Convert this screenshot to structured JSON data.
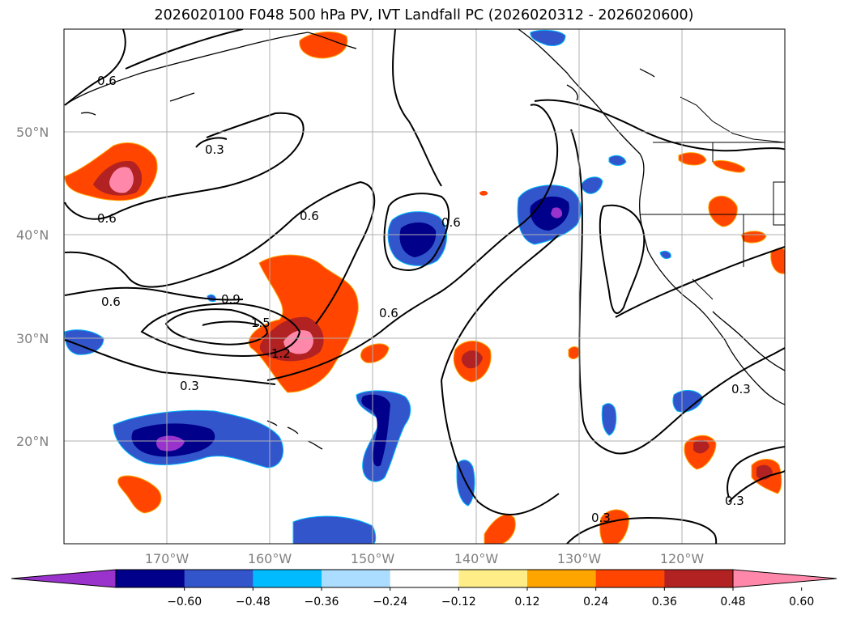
{
  "title": "2026020100 F048 500 hPa PV, IVT Landfall PC (2026020312 - 2026020600)",
  "map": {
    "lon_range": [
      -180,
      -110
    ],
    "lat_range": [
      10,
      60
    ],
    "lat_ticks": [
      "20°N",
      "30°N",
      "40°N",
      "50°N"
    ],
    "lon_ticks": [
      "170°W",
      "160°W",
      "150°W",
      "140°W",
      "130°W",
      "120°W"
    ],
    "contour_labels": [
      "0.6",
      "0.3",
      "0.6",
      "0.6",
      "0.6",
      "0.6",
      "0.9",
      "1.5",
      "1.2",
      "0.6",
      "0.3",
      "0.3",
      "0.3",
      "0.3"
    ],
    "grid": true
  },
  "colorbar": {
    "ticks": [
      "−0.60",
      "−0.48",
      "−0.36",
      "−0.24",
      "−0.12",
      "0.12",
      "0.24",
      "0.36",
      "0.48",
      "0.60"
    ],
    "colors": [
      "#9933cc",
      "#00008b",
      "#3355cc",
      "#00bbff",
      "#aaddff",
      "#ffffff",
      "#ffee88",
      "#ffa500",
      "#ff4500",
      "#b22222",
      "#ff88aa"
    ],
    "extend": "both"
  }
}
